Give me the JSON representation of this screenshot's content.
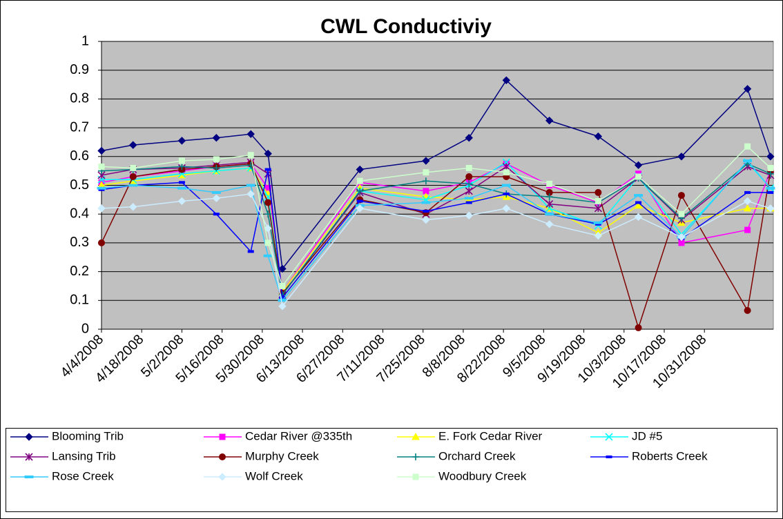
{
  "chart_data": {
    "type": "line",
    "title": "CWL Conductiviy",
    "x": [
      "4/4/2008",
      "4/15/2008",
      "5/2/2008",
      "5/14/2008",
      "5/26/2008",
      "6/1/2008",
      "6/6/2008",
      "7/3/2008",
      "7/26/2008",
      "8/10/2008",
      "8/23/2008",
      "9/7/2008",
      "9/24/2008",
      "10/8/2008",
      "10/23/2008",
      "11/15/2008",
      "11/23/2008"
    ],
    "xlim": [
      "4/4/2008",
      "11/24/2008"
    ],
    "xticks": [
      "4/4/2008",
      "4/18/2008",
      "5/2/2008",
      "5/16/2008",
      "5/30/2008",
      "6/13/2008",
      "6/27/2008",
      "7/11/2008",
      "7/25/2008",
      "8/8/2008",
      "8/22/2008",
      "9/5/2008",
      "9/19/2008",
      "10/3/2008",
      "10/17/2008",
      "10/31/2008"
    ],
    "ylim": [
      0,
      1
    ],
    "yticks": [
      0,
      0.1,
      0.2,
      0.3,
      0.4,
      0.5,
      0.6,
      0.7,
      0.8,
      0.9,
      1
    ],
    "grid": true,
    "legend": "bottom",
    "series": [
      {
        "name": "Blooming Trib",
        "color": "#000080",
        "marker": "diamond",
        "values": [
          0.62,
          0.64,
          0.655,
          0.665,
          0.678,
          0.61,
          0.21,
          0.555,
          0.585,
          0.665,
          0.865,
          0.725,
          0.67,
          0.57,
          0.6,
          0.835,
          0.6
        ]
      },
      {
        "name": "Cedar River @335th",
        "color": "#FF00FF",
        "marker": "square",
        "values": [
          0.51,
          0.53,
          0.55,
          0.565,
          0.575,
          0.49,
          0.13,
          0.51,
          0.48,
          0.51,
          0.575,
          0.5,
          0.44,
          0.54,
          0.3,
          0.345,
          0.55
        ]
      },
      {
        "name": "E. Fork Cedar River",
        "color": "#FFFF00",
        "marker": "triangle",
        "values": [
          0.5,
          0.515,
          0.535,
          0.55,
          0.56,
          0.47,
          0.13,
          0.49,
          0.46,
          0.45,
          0.46,
          0.42,
          0.335,
          0.43,
          0.37,
          0.42,
          0.42
        ]
      },
      {
        "name": "JD #5",
        "color": "#00FFFF",
        "marker": "x",
        "values": [
          0.52,
          0.52,
          0.54,
          0.55,
          0.56,
          0.46,
          0.12,
          0.48,
          0.45,
          0.5,
          0.58,
          0.42,
          0.36,
          0.53,
          0.33,
          0.58,
          0.49
        ]
      },
      {
        "name": "Lansing Trib",
        "color": "#800080",
        "marker": "star",
        "values": [
          0.535,
          0.555,
          0.56,
          0.57,
          0.58,
          0.54,
          0.12,
          0.475,
          0.4,
          0.48,
          0.565,
          0.435,
          0.42,
          0.525,
          0.38,
          0.565,
          0.535
        ]
      },
      {
        "name": "Murphy Creek",
        "color": "#800000",
        "marker": "circle",
        "values": [
          0.3,
          0.53,
          0.555,
          0.565,
          0.575,
          0.44,
          0.125,
          0.45,
          0.405,
          0.53,
          0.53,
          0.475,
          0.475,
          0.005,
          0.465,
          0.065,
          0.55
        ]
      },
      {
        "name": "Orchard Creek",
        "color": "#008080",
        "marker": "plus",
        "values": [
          0.55,
          0.555,
          0.565,
          0.56,
          0.57,
          0.4,
          0.12,
          0.48,
          0.515,
          0.505,
          0.47,
          0.46,
          0.44,
          0.525,
          0.385,
          0.575,
          0.54
        ]
      },
      {
        "name": "Roberts Creek",
        "color": "#0000FF",
        "marker": "dash",
        "values": [
          0.485,
          0.5,
          0.51,
          0.4,
          0.27,
          0.555,
          0.11,
          0.445,
          0.41,
          0.44,
          0.47,
          0.4,
          0.365,
          0.44,
          0.315,
          0.475,
          0.475
        ]
      },
      {
        "name": "Rose Creek",
        "color": "#33CCFF",
        "marker": "widedash",
        "values": [
          0.49,
          0.5,
          0.49,
          0.475,
          0.5,
          0.255,
          0.1,
          0.43,
          0.44,
          0.455,
          0.5,
          0.4,
          0.37,
          0.465,
          0.32,
          0.585,
          0.49
        ]
      },
      {
        "name": "Wolf Creek",
        "color": "#CCECFF",
        "marker": "diamond",
        "values": [
          0.42,
          0.425,
          0.445,
          0.455,
          0.47,
          0.35,
          0.08,
          0.42,
          0.38,
          0.395,
          0.42,
          0.365,
          0.325,
          0.39,
          0.32,
          0.445,
          0.42
        ]
      },
      {
        "name": "Woodbury Creek",
        "color": "#CCFFCC",
        "marker": "square",
        "values": [
          0.565,
          0.56,
          0.585,
          0.59,
          0.605,
          0.3,
          0.15,
          0.515,
          0.545,
          0.56,
          0.545,
          0.505,
          0.445,
          0.53,
          0.4,
          0.635,
          0.56
        ]
      }
    ]
  }
}
